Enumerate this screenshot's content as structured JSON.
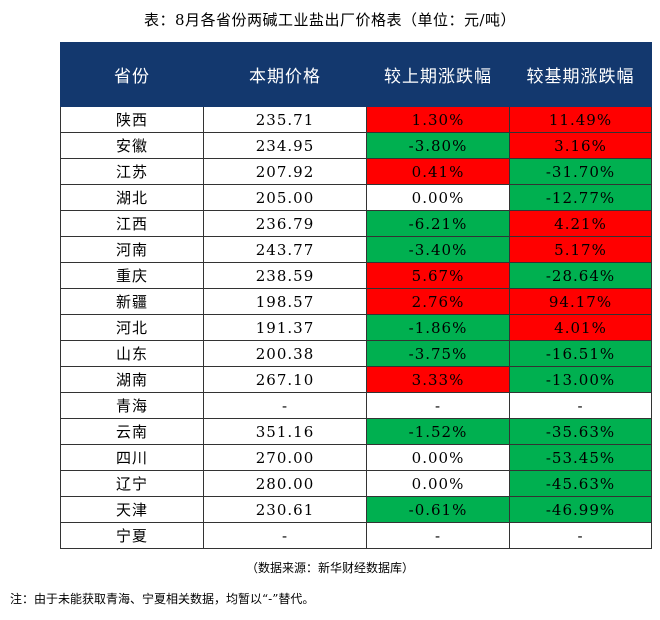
{
  "title": "表：8月各省份两碱工业盐出厂价格表（单位：元/吨）",
  "table": {
    "headers": [
      "省份",
      "本期价格",
      "较上期涨跌幅",
      "较基期涨跌幅"
    ],
    "rows": [
      {
        "province": "陕西",
        "price": "235.71",
        "mom": "1.30%",
        "mom_dir": "up",
        "base": "11.49%",
        "base_dir": "up"
      },
      {
        "province": "安徽",
        "price": "234.95",
        "mom": "-3.80%",
        "mom_dir": "down",
        "base": "3.16%",
        "base_dir": "up"
      },
      {
        "province": "江苏",
        "price": "207.92",
        "mom": "0.41%",
        "mom_dir": "up",
        "base": "-31.70%",
        "base_dir": "down"
      },
      {
        "province": "湖北",
        "price": "205.00",
        "mom": "0.00%",
        "mom_dir": "flat",
        "base": "-12.77%",
        "base_dir": "down"
      },
      {
        "province": "江西",
        "price": "236.79",
        "mom": "-6.21%",
        "mom_dir": "down",
        "base": "4.21%",
        "base_dir": "up"
      },
      {
        "province": "河南",
        "price": "243.77",
        "mom": "-3.40%",
        "mom_dir": "down",
        "base": "5.17%",
        "base_dir": "up"
      },
      {
        "province": "重庆",
        "price": "238.59",
        "mom": "5.67%",
        "mom_dir": "up",
        "base": "-28.64%",
        "base_dir": "down"
      },
      {
        "province": "新疆",
        "price": "198.57",
        "mom": "2.76%",
        "mom_dir": "up",
        "base": "94.17%",
        "base_dir": "up"
      },
      {
        "province": "河北",
        "price": "191.37",
        "mom": "-1.86%",
        "mom_dir": "down",
        "base": "4.01%",
        "base_dir": "up"
      },
      {
        "province": "山东",
        "price": "200.38",
        "mom": "-3.75%",
        "mom_dir": "down",
        "base": "-16.51%",
        "base_dir": "down"
      },
      {
        "province": "湖南",
        "price": "267.10",
        "mom": "3.33%",
        "mom_dir": "up",
        "base": "-13.00%",
        "base_dir": "down"
      },
      {
        "province": "青海",
        "price": "-",
        "mom": "-",
        "mom_dir": "flat",
        "base": "-",
        "base_dir": "flat"
      },
      {
        "province": "云南",
        "price": "351.16",
        "mom": "-1.52%",
        "mom_dir": "down",
        "base": "-35.63%",
        "base_dir": "down"
      },
      {
        "province": "四川",
        "price": "270.00",
        "mom": "0.00%",
        "mom_dir": "flat",
        "base": "-53.45%",
        "base_dir": "down"
      },
      {
        "province": "辽宁",
        "price": "280.00",
        "mom": "0.00%",
        "mom_dir": "flat",
        "base": "-45.63%",
        "base_dir": "down"
      },
      {
        "province": "天津",
        "price": "230.61",
        "mom": "-0.61%",
        "mom_dir": "down",
        "base": "-46.99%",
        "base_dir": "down"
      },
      {
        "province": "宁夏",
        "price": "-",
        "mom": "-",
        "mom_dir": "flat",
        "base": "-",
        "base_dir": "flat"
      }
    ]
  },
  "colors": {
    "header_bg": "#13386e",
    "up": "#ff0000",
    "down": "#00b050"
  },
  "source": "（数据来源：新华财经数据库）",
  "note": "注：由于未能获取青海、宁夏相关数据，均暂以“-”替代。"
}
